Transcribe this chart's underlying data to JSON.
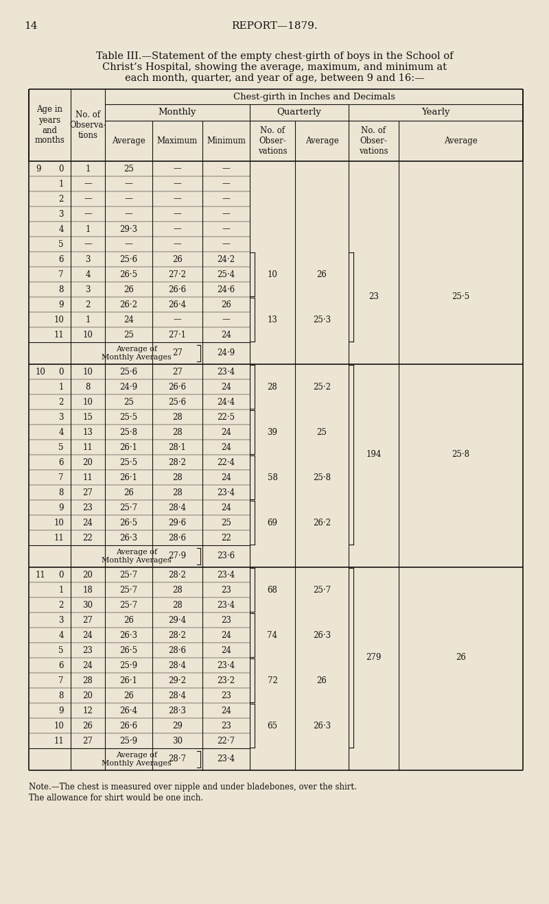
{
  "page_num": "14",
  "page_header": "REPORT—1879.",
  "title_line1": "Table III.—Statement of the empty chest-girth of boys in the School of",
  "title_line2": "Christ’s Hospital, showing the average, maximum, and minimum at",
  "title_line3": "each month, quarter, and year of age, between 9 and 16:—",
  "col_header_main": "Chest-girth in Inches and Decimals",
  "col_header_monthly": "Monthly",
  "col_header_quarterly": "Quarterly",
  "col_header_yearly": "Yearly",
  "note_line1": "Note.—The chest is measured over nipple and under bladebones, over the shirt.",
  "note_line2": "The allowance for shirt would be one inch.",
  "bg_color": "#ede5d4",
  "text_color": "#111111",
  "age9_rows": [
    {
      "month": "9  0",
      "obs": "1",
      "avg": "25",
      "max": "—",
      "min": "—"
    },
    {
      "month": "1",
      "obs": "—",
      "avg": "—",
      "max": "—",
      "min": "—"
    },
    {
      "month": "2",
      "obs": "—",
      "avg": "—",
      "max": "—",
      "min": "—"
    },
    {
      "month": "3",
      "obs": "—",
      "avg": "—",
      "max": "—",
      "min": "—"
    },
    {
      "month": "4",
      "obs": "1",
      "avg": "29·3",
      "max": "—",
      "min": "—"
    },
    {
      "month": "5",
      "obs": "—",
      "avg": "—",
      "max": "—",
      "min": "—"
    },
    {
      "month": "6",
      "obs": "3",
      "avg": "25·6",
      "max": "26",
      "min": "24·2"
    },
    {
      "month": "7",
      "obs": "4",
      "avg": "26·5",
      "max": "27·2",
      "min": "25·4"
    },
    {
      "month": "8",
      "obs": "3",
      "avg": "26",
      "max": "26·6",
      "min": "24·6"
    },
    {
      "month": "9",
      "obs": "2",
      "avg": "26·2",
      "max": "26·4",
      "min": "26"
    },
    {
      "month": "10",
      "obs": "1",
      "avg": "24",
      "max": "—",
      "min": "—"
    },
    {
      "month": "11",
      "obs": "10",
      "avg": "25",
      "max": "27·1",
      "min": "24"
    }
  ],
  "age9_q1_obs": "10",
  "age9_q1_avg": "26",
  "age9_q2_obs": "13",
  "age9_q2_avg": "25·3",
  "age9_y_obs": "23",
  "age9_y_avg": "25·5",
  "age9_avg_max": "27",
  "age9_avg_min": "24·9",
  "age10_rows": [
    {
      "month": "10  0",
      "obs": "10",
      "avg": "25·6",
      "max": "27",
      "min": "23·4"
    },
    {
      "month": "1",
      "obs": "8",
      "avg": "24·9",
      "max": "26·6",
      "min": "24"
    },
    {
      "month": "2",
      "obs": "10",
      "avg": "25",
      "max": "25·6",
      "min": "24·4"
    },
    {
      "month": "3",
      "obs": "15",
      "avg": "25·5",
      "max": "28",
      "min": "22·5"
    },
    {
      "month": "4",
      "obs": "13",
      "avg": "25·8",
      "max": "28",
      "min": "24"
    },
    {
      "month": "5",
      "obs": "11",
      "avg": "26·1",
      "max": "28·1",
      "min": "24"
    },
    {
      "month": "6",
      "obs": "20",
      "avg": "25·5",
      "max": "28·2",
      "min": "22·4"
    },
    {
      "month": "7",
      "obs": "11",
      "avg": "26·1",
      "max": "28",
      "min": "24"
    },
    {
      "month": "8",
      "obs": "27",
      "avg": "26",
      "max": "28",
      "min": "23·4"
    },
    {
      "month": "9",
      "obs": "23",
      "avg": "25·7",
      "max": "28·4",
      "min": "24"
    },
    {
      "month": "10",
      "obs": "24",
      "avg": "26·5",
      "max": "29·6",
      "min": "25"
    },
    {
      "month": "11",
      "obs": "22",
      "avg": "26·3",
      "max": "28·6",
      "min": "22"
    }
  ],
  "age10_q1_obs": "28",
  "age10_q1_avg": "25·2",
  "age10_q2_obs": "39",
  "age10_q2_avg": "25",
  "age10_q3_obs": "58",
  "age10_q3_avg": "25·8",
  "age10_q4_obs": "69",
  "age10_q4_avg": "26·2",
  "age10_y_obs": "194",
  "age10_y_avg": "25·8",
  "age10_avg_max": "27·9",
  "age10_avg_min": "23·6",
  "age11_rows": [
    {
      "month": "11  0",
      "obs": "20",
      "avg": "25·7",
      "max": "28·2",
      "min": "23·4"
    },
    {
      "month": "1",
      "obs": "18",
      "avg": "25·7",
      "max": "28",
      "min": "23"
    },
    {
      "month": "2",
      "obs": "30",
      "avg": "25·7",
      "max": "28",
      "min": "23·4"
    },
    {
      "month": "3",
      "obs": "27",
      "avg": "26",
      "max": "29·4",
      "min": "23"
    },
    {
      "month": "4",
      "obs": "24",
      "avg": "26·3",
      "max": "28·2",
      "min": "24"
    },
    {
      "month": "5",
      "obs": "23",
      "avg": "26·5",
      "max": "28·6",
      "min": "24"
    },
    {
      "month": "6",
      "obs": "24",
      "avg": "25·9",
      "max": "28·4",
      "min": "23·4"
    },
    {
      "month": "7",
      "obs": "28",
      "avg": "26·1",
      "max": "29·2",
      "min": "23·2"
    },
    {
      "month": "8",
      "obs": "20",
      "avg": "26",
      "max": "28·4",
      "min": "23"
    },
    {
      "month": "9",
      "obs": "12",
      "avg": "26·4",
      "max": "28·3",
      "min": "24"
    },
    {
      "month": "10",
      "obs": "26",
      "avg": "26·6",
      "max": "29",
      "min": "23"
    },
    {
      "month": "11",
      "obs": "27",
      "avg": "25·9",
      "max": "30",
      "min": "22·7"
    }
  ],
  "age11_q1_obs": "68",
  "age11_q1_avg": "25·7",
  "age11_q2_obs": "74",
  "age11_q2_avg": "26·3",
  "age11_q3_obs": "72",
  "age11_q3_avg": "26",
  "age11_q4_obs": "65",
  "age11_q4_avg": "26·3",
  "age11_y_obs": "279",
  "age11_y_avg": "26",
  "age11_avg_max": "28·7",
  "age11_avg_min": "23·4"
}
